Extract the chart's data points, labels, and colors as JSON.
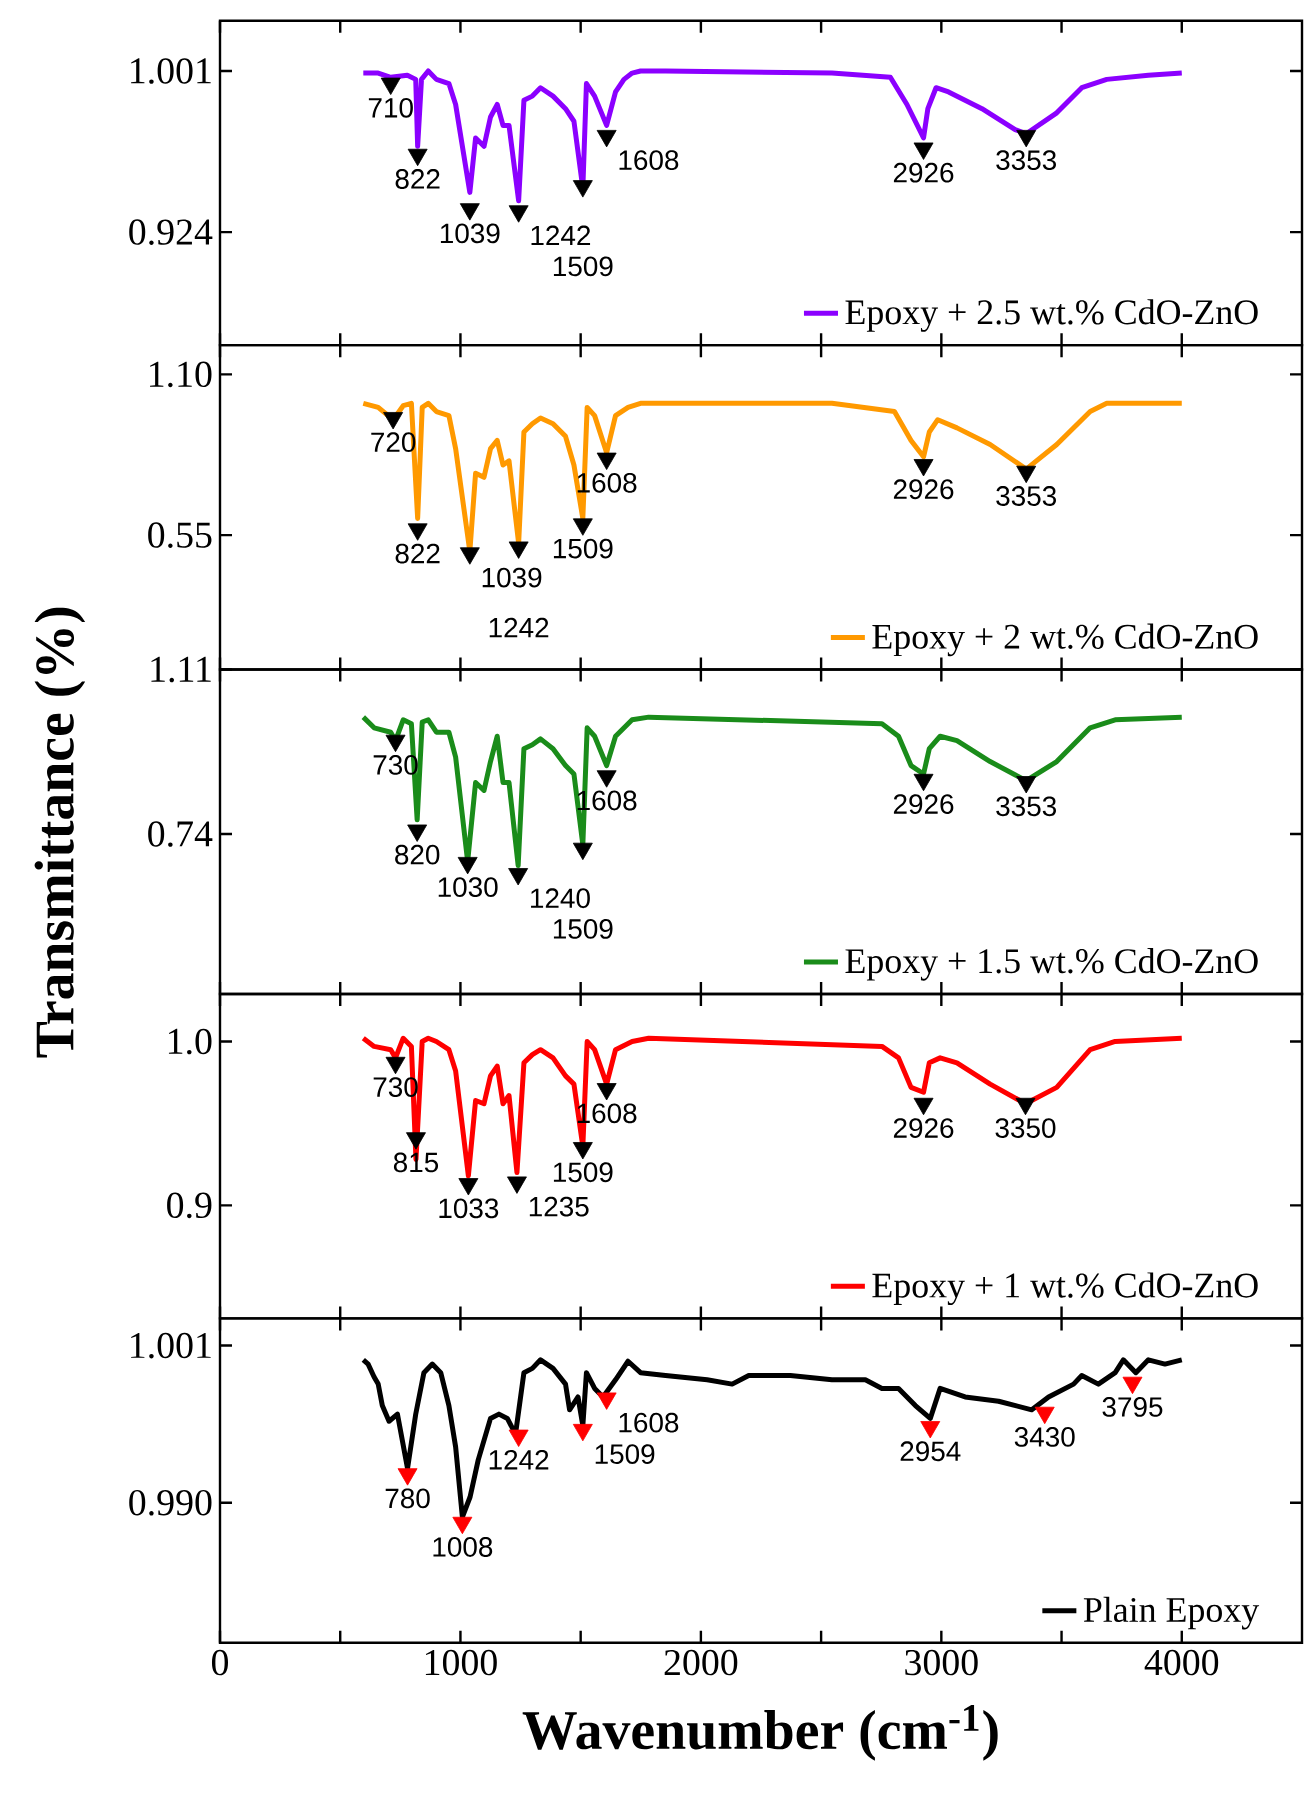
{
  "chart_data": [
    {
      "type": "line",
      "xlim": [
        0,
        4500
      ],
      "xticks": [
        0,
        {
          "value": 500,
          "label": null
        },
        1000,
        {
          "value": 1500,
          "label": null
        },
        2000,
        {
          "value": 2500,
          "label": null
        },
        3000,
        {
          "value": 3500,
          "label": null
        },
        4000
      ],
      "ylim": [
        0.87,
        1.025
      ],
      "yticks": [
        0.924,
        1.001
      ],
      "tick_labels": "y",
      "legend": "bottom right",
      "series": [
        {
          "name": "Epoxy + 2.5 wt.% CdO-ZnO",
          "color": "#8b00ff",
          "x": [
            596,
            658,
            710,
            779,
            814,
            822,
            838,
            866,
            900,
            952,
            980,
            1039,
            1063,
            1098,
            1125,
            1153,
            1177,
            1202,
            1242,
            1264,
            1299,
            1333,
            1385,
            1437,
            1472,
            1509,
            1524,
            1558,
            1608,
            1645,
            1680,
            1714,
            1749,
            1853,
            2545,
            2788,
            2857,
            2926,
            2944,
            2978,
            3030,
            3169,
            3307,
            3353,
            3480,
            3584,
            3688,
            3861,
            4000
          ],
          "values": [
            1.0,
            1.0,
            0.998,
            0.999,
            0.997,
            0.965,
            0.997,
            1.001,
            0.997,
            0.995,
            0.985,
            0.943,
            0.969,
            0.965,
            0.979,
            0.985,
            0.975,
            0.975,
            0.939,
            0.987,
            0.989,
            0.993,
            0.989,
            0.983,
            0.977,
            0.945,
            0.995,
            0.989,
            0.975,
            0.991,
            0.997,
            1.0,
            1.001,
            1.001,
            1.0,
            0.998,
            0.985,
            0.969,
            0.983,
            0.993,
            0.991,
            0.983,
            0.973,
            0.971,
            0.981,
            0.993,
            0.997,
            0.999,
            1.0
          ]
        },
        {
          "type": "scatter",
          "marker": "triangle",
          "color": "#000000",
          "x": [
            710,
            822,
            1039,
            1242,
            1509,
            1608,
            2926,
            3353
          ],
          "values": [
            0.995,
            0.961,
            0.935,
            0.934,
            0.946,
            0.97,
            0.964,
            0.97
          ]
        }
      ],
      "annotations": [
        {
          "text": "710",
          "x": 710,
          "y": 0.995
        },
        {
          "text": "822",
          "x": 822,
          "y": 0.961
        },
        {
          "text": "1039",
          "x": 1039,
          "y": 0.935
        },
        {
          "text": "1242",
          "x": 1242,
          "y": 0.934
        },
        {
          "text": "1509",
          "x": 1509,
          "y": 0.946
        },
        {
          "text": "1608",
          "x": 1608,
          "y": 0.97
        },
        {
          "text": "2926",
          "x": 2926,
          "y": 0.964
        },
        {
          "text": "3353",
          "x": 3353,
          "y": 0.97
        }
      ]
    },
    {
      "type": "line",
      "xlim": [
        0,
        4500
      ],
      "xticks": [
        0,
        {
          "value": 500,
          "label": null
        },
        1000,
        {
          "value": 1500,
          "label": null
        },
        2000,
        {
          "value": 2500,
          "label": null
        },
        3000,
        {
          "value": 3500,
          "label": null
        },
        4000
      ],
      "ylim": [
        0.09,
        1.2
      ],
      "yticks": [
        0.55,
        {
          "value": 1.1,
          "label": "1.10"
        }
      ],
      "tick_labels": "y",
      "legend": "bottom right",
      "series": [
        {
          "name": "Epoxy + 2 wt.% CdO-ZnO",
          "color": "#ff9900",
          "x": [
            596,
            658,
            720,
            762,
            796,
            822,
            841,
            866,
            900,
            952,
            980,
            1039,
            1063,
            1098,
            1125,
            1153,
            1177,
            1202,
            1242,
            1264,
            1299,
            1333,
            1385,
            1437,
            1472,
            1509,
            1527,
            1558,
            1608,
            1645,
            1697,
            1749,
            2545,
            2805,
            2874,
            2926,
            2950,
            2985,
            3065,
            3203,
            3353,
            3480,
            3619,
            3688,
            4000
          ],
          "values": [
            1.001,
            0.987,
            0.945,
            0.993,
            1.001,
            0.607,
            0.987,
            1.001,
            0.973,
            0.959,
            0.846,
            0.494,
            0.762,
            0.748,
            0.846,
            0.874,
            0.79,
            0.804,
            0.522,
            0.903,
            0.931,
            0.951,
            0.931,
            0.888,
            0.79,
            0.607,
            0.987,
            0.959,
            0.832,
            0.959,
            0.987,
            1.001,
            1.001,
            0.973,
            0.874,
            0.818,
            0.903,
            0.945,
            0.917,
            0.86,
            0.776,
            0.86,
            0.973,
            1.001,
            1.001
          ]
        },
        {
          "type": "scatter",
          "marker": "triangle",
          "color": "#000000",
          "x": [
            720,
            822,
            1039,
            1242,
            1509,
            1608,
            2926,
            3353
          ],
          "values": [
            0.951,
            0.57,
            0.488,
            0.508,
            0.587,
            0.812,
            0.79,
            0.767
          ]
        }
      ],
      "annotations": [
        {
          "text": "720",
          "x": 720,
          "y": 0.951
        },
        {
          "text": "822",
          "x": 822,
          "y": 0.57
        },
        {
          "text": "1039",
          "x": 1039,
          "y": 0.488
        },
        {
          "text": "1242",
          "x": 1242,
          "y": 0.508
        },
        {
          "text": "1509",
          "x": 1509,
          "y": 0.587
        },
        {
          "text": "1608",
          "x": 1608,
          "y": 0.812
        },
        {
          "text": "2926",
          "x": 2926,
          "y": 0.79
        },
        {
          "text": "3353",
          "x": 3353,
          "y": 0.767
        }
      ]
    },
    {
      "type": "line",
      "xlim": [
        0,
        4500
      ],
      "xticks": [
        0,
        {
          "value": 500,
          "label": null
        },
        1000,
        {
          "value": 1500,
          "label": null
        },
        2000,
        {
          "value": 2500,
          "label": null
        },
        3000,
        {
          "value": 3500,
          "label": null
        },
        4000
      ],
      "ylim": [
        0.38,
        1.11
      ],
      "yticks": [
        0.74,
        1.11
      ],
      "tick_labels": "y",
      "legend": "bottom right",
      "ylabel": "Transmittance (%)",
      "series": [
        {
          "name": "Epoxy + 1.5 wt.% CdO-ZnO",
          "color": "#1a8c1a",
          "x": [
            596,
            641,
            710,
            730,
            762,
            796,
            820,
            841,
            866,
            900,
            952,
            980,
            1030,
            1063,
            1098,
            1125,
            1153,
            1177,
            1202,
            1240,
            1264,
            1299,
            1333,
            1385,
            1437,
            1472,
            1509,
            1527,
            1558,
            1608,
            1645,
            1714,
            1783,
            2753,
            2822,
            2874,
            2926,
            2950,
            2995,
            3065,
            3203,
            3353,
            3480,
            3619,
            3723,
            4000
          ],
          "values": [
            1.003,
            0.979,
            0.969,
            0.95,
            0.997,
            0.988,
            0.772,
            0.992,
            0.997,
            0.969,
            0.969,
            0.913,
            0.678,
            0.856,
            0.838,
            0.903,
            0.96,
            0.856,
            0.856,
            0.669,
            0.932,
            0.941,
            0.954,
            0.932,
            0.894,
            0.875,
            0.716,
            0.979,
            0.96,
            0.894,
            0.96,
            0.997,
            1.003,
            0.988,
            0.96,
            0.894,
            0.875,
            0.932,
            0.96,
            0.95,
            0.903,
            0.86,
            0.903,
            0.979,
            0.997,
            1.003
          ]
        },
        {
          "type": "scatter",
          "marker": "triangle",
          "color": "#000000",
          "x": [
            730,
            820,
            1030,
            1240,
            1509,
            1608,
            2926,
            3353
          ],
          "values": [
            0.95,
            0.748,
            0.675,
            0.65,
            0.707,
            0.87,
            0.862,
            0.857
          ]
        }
      ],
      "annotations": [
        {
          "text": "730",
          "x": 730,
          "y": 0.95
        },
        {
          "text": "820",
          "x": 820,
          "y": 0.748
        },
        {
          "text": "1030",
          "x": 1030,
          "y": 0.675
        },
        {
          "text": "1240",
          "x": 1240,
          "y": 0.65
        },
        {
          "text": "1509",
          "x": 1509,
          "y": 0.707
        },
        {
          "text": "1608",
          "x": 1608,
          "y": 0.87
        },
        {
          "text": "2926",
          "x": 2926,
          "y": 0.862
        },
        {
          "text": "3353",
          "x": 3353,
          "y": 0.857
        }
      ]
    },
    {
      "type": "line",
      "xlim": [
        0,
        4500
      ],
      "xticks": [
        0,
        {
          "value": 500,
          "label": null
        },
        1000,
        {
          "value": 1500,
          "label": null
        },
        2000,
        {
          "value": 2500,
          "label": null
        },
        3000,
        {
          "value": 3500,
          "label": null
        },
        4000
      ],
      "ylim": [
        0.831,
        1.029
      ],
      "yticks": [
        {
          "value": 0.9,
          "label": "0.9"
        },
        {
          "value": 1.0,
          "label": "1.0"
        }
      ],
      "tick_labels": "y",
      "legend": "bottom right",
      "series": [
        {
          "name": "Epoxy + 1 wt.% CdO-ZnO",
          "color": "#ff0000",
          "x": [
            596,
            641,
            710,
            730,
            762,
            796,
            815,
            841,
            866,
            900,
            952,
            980,
            1033,
            1063,
            1098,
            1125,
            1153,
            1177,
            1202,
            1235,
            1264,
            1299,
            1333,
            1385,
            1437,
            1472,
            1509,
            1527,
            1558,
            1608,
            1645,
            1714,
            1783,
            2753,
            2822,
            2874,
            2926,
            2950,
            2995,
            3065,
            3203,
            3350,
            3480,
            3619,
            3723,
            4000
          ],
          "values": [
            1.002,
            0.997,
            0.995,
            0.99,
            1.002,
            0.997,
            0.928,
            1.0,
            1.002,
            1.0,
            0.995,
            0.982,
            0.918,
            0.964,
            0.962,
            0.979,
            0.985,
            0.962,
            0.967,
            0.92,
            0.987,
            0.992,
            0.995,
            0.99,
            0.979,
            0.974,
            0.936,
            1.0,
            0.995,
            0.974,
            0.995,
            1.0,
            1.002,
            0.997,
            0.99,
            0.972,
            0.969,
            0.987,
            0.99,
            0.987,
            0.974,
            0.962,
            0.972,
            0.995,
            1.0,
            1.002
          ]
        },
        {
          "type": "scatter",
          "marker": "triangle",
          "color": "#000000",
          "x": [
            730,
            815,
            1033,
            1235,
            1509,
            1608,
            2926,
            3350
          ],
          "values": [
            0.987,
            0.941,
            0.913,
            0.914,
            0.935,
            0.971,
            0.962,
            0.962
          ]
        }
      ],
      "annotations": [
        {
          "text": "730",
          "x": 730,
          "y": 0.987
        },
        {
          "text": "815",
          "x": 815,
          "y": 0.941
        },
        {
          "text": "1033",
          "x": 1033,
          "y": 0.913
        },
        {
          "text": "1235",
          "x": 1235,
          "y": 0.914
        },
        {
          "text": "1509",
          "x": 1509,
          "y": 0.935
        },
        {
          "text": "1608",
          "x": 1608,
          "y": 0.971
        },
        {
          "text": "2926",
          "x": 2926,
          "y": 0.962
        },
        {
          "text": "3350",
          "x": 3350,
          "y": 0.962
        }
      ]
    },
    {
      "type": "line",
      "xlim": [
        0,
        4500
      ],
      "xticks": [
        0,
        {
          "value": 500,
          "label": null
        },
        1000,
        {
          "value": 1500,
          "label": null
        },
        2000,
        {
          "value": 2500,
          "label": null
        },
        3000,
        {
          "value": 3500,
          "label": null
        },
        4000
      ],
      "ylim": [
        0.9802,
        1.0029
      ],
      "yticks": [
        {
          "value": 0.99,
          "label": "0.990"
        },
        1.001
      ],
      "legend": "bottom right",
      "xlabel": "Wavenumber (cm$^{-1}$)",
      "series": [
        {
          "name": "Plain Epoxy",
          "color": "#000000",
          "x": [
            596,
            616,
            641,
            658,
            675,
            703,
            738,
            780,
            814,
            848,
            883,
            918,
            952,
            980,
            1008,
            1040,
            1074,
            1125,
            1160,
            1195,
            1229,
            1264,
            1299,
            1333,
            1385,
            1437,
            1454,
            1489,
            1509,
            1524,
            1558,
            1593,
            1645,
            1697,
            1749,
            1853,
            2026,
            2130,
            2199,
            2372,
            2545,
            2684,
            2753,
            2822,
            2892,
            2954,
            2995,
            3099,
            3238,
            3376,
            3446,
            3550,
            3584,
            3653,
            3723,
            3757,
            3809,
            3861,
            3930,
            4000
          ],
          "values": [
            1.0,
            0.9997,
            0.9988,
            0.9983,
            0.9968,
            0.9957,
            0.9962,
            0.9924,
            0.9962,
            0.9991,
            0.9997,
            0.9991,
            0.9968,
            0.9939,
            0.989,
            0.9904,
            0.993,
            0.9959,
            0.9962,
            0.9959,
            0.9948,
            0.9991,
            0.9994,
            1.0,
            0.9994,
            0.9983,
            0.9965,
            0.9974,
            0.9954,
            0.9991,
            0.998,
            0.9974,
            0.9986,
            0.9999,
            0.9991,
            0.9989,
            0.9986,
            0.9983,
            0.9989,
            0.9989,
            0.9986,
            0.9986,
            0.998,
            0.998,
            0.9968,
            0.9959,
            0.998,
            0.9974,
            0.9971,
            0.9965,
            0.9974,
            0.9983,
            0.9989,
            0.9983,
            0.9991,
            1.0,
            0.9991,
            1.0,
            0.9997,
            1.0
          ]
        },
        {
          "type": "scatter",
          "marker": "triangle",
          "color": "#ff0000",
          "x": [
            780,
            1008,
            1242,
            1509,
            1608,
            2954,
            3430,
            3795
          ],
          "values": [
            0.992,
            0.9886,
            0.9947,
            0.9951,
            0.9973,
            0.9953,
            0.9963,
            0.9984
          ]
        }
      ],
      "annotations": [
        {
          "text": "780",
          "x": 780,
          "y": 0.992
        },
        {
          "text": "1008",
          "x": 1008,
          "y": 0.9886
        },
        {
          "text": "1242",
          "x": 1242,
          "y": 0.9947
        },
        {
          "text": "1509",
          "x": 1509,
          "y": 0.9951
        },
        {
          "text": "1608",
          "x": 1608,
          "y": 0.9973
        },
        {
          "text": "2954",
          "x": 2954,
          "y": 0.9953
        },
        {
          "text": "3430",
          "x": 3430,
          "y": 0.9963
        },
        {
          "text": "3795",
          "x": 3795,
          "y": 0.9984
        }
      ]
    }
  ]
}
